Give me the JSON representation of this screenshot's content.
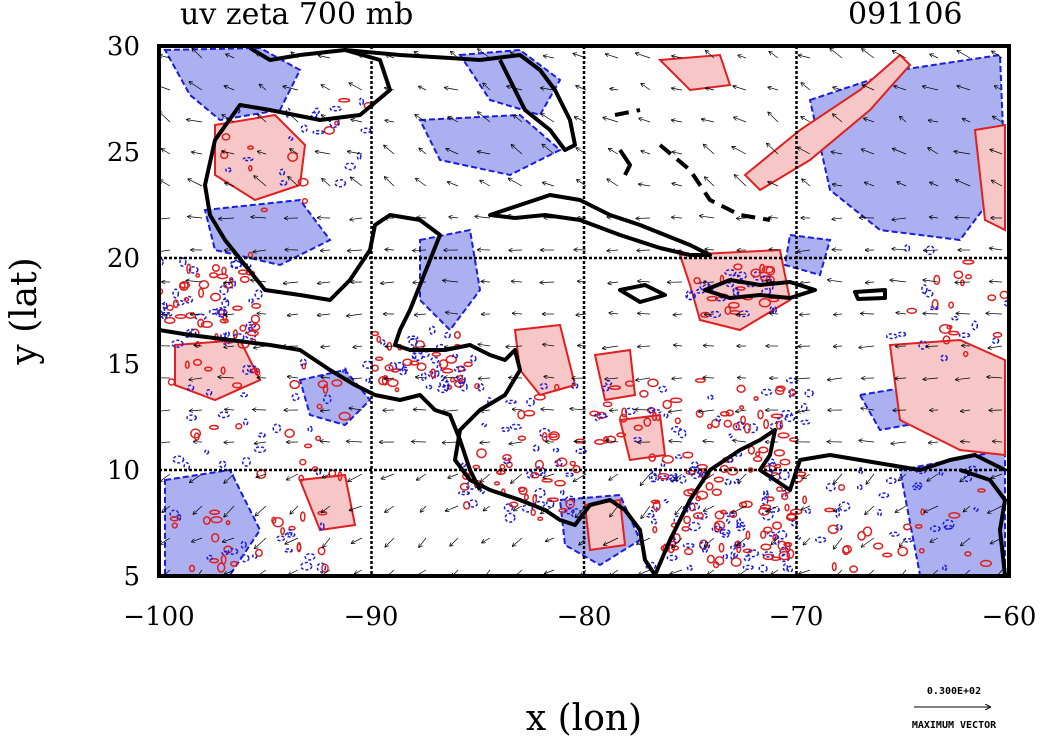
{
  "title_left": "uv zeta 700 mb",
  "title_right": "091106",
  "xlabel": "x (lon)",
  "ylabel": "y (lat)",
  "legend": {
    "vector_value": "0.300E+02",
    "vector_label": "MAXIMUM VECTOR"
  },
  "colors": {
    "positive_contour": "#e02020",
    "positive_fill": "#f7c6c6",
    "negative_contour": "#1c1cdc",
    "negative_fill": "#aab0f0",
    "coastline": "#000000",
    "frame": "#000000",
    "vector": "#000000"
  },
  "chart_data": {
    "type": "map",
    "xlim": [
      -100,
      -60
    ],
    "ylim": [
      5,
      30
    ],
    "xticks": [
      -100,
      -90,
      -80,
      -70,
      -60
    ],
    "yticks": [
      5,
      10,
      15,
      20,
      25,
      30
    ],
    "xtick_labels": [
      "−100",
      "−90",
      "−80",
      "−70",
      "−60"
    ],
    "ytick_labels": [
      "5",
      "10",
      "15",
      "20",
      "25",
      "30"
    ],
    "grid": true,
    "fields": [
      "wind vectors (u,v)",
      "relative vorticity zeta"
    ],
    "level": "700 mb"
  }
}
